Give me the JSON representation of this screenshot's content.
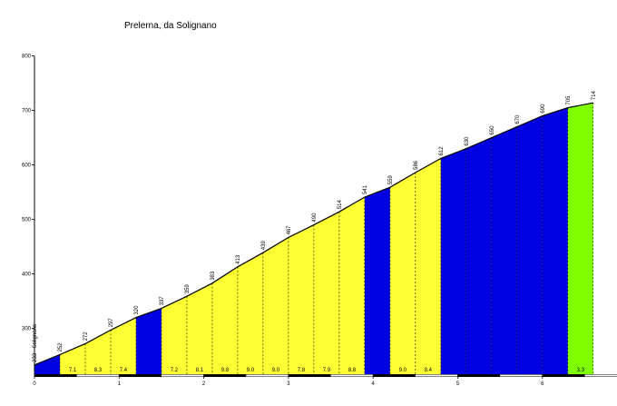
{
  "chart_data": {
    "type": "area",
    "title": "Prelerna, da Solignano",
    "xlabel": "",
    "ylabel": "",
    "xlim": [
      0,
      6.8
    ],
    "ylim": [
      216,
      800
    ],
    "x_ticks": [
      "0",
      "1",
      "2",
      "3",
      "4",
      "5",
      "6"
    ],
    "y_ticks": [
      "300",
      "400",
      "500",
      "600",
      "700",
      "800"
    ],
    "start_label": "233 - Solignano",
    "profile": [
      {
        "km": 0.0,
        "elev": 233
      },
      {
        "km": 0.3,
        "elev": 252
      },
      {
        "km": 0.6,
        "elev": 272
      },
      {
        "km": 0.9,
        "elev": 297
      },
      {
        "km": 1.2,
        "elev": 320
      },
      {
        "km": 1.5,
        "elev": 337
      },
      {
        "km": 1.8,
        "elev": 359
      },
      {
        "km": 2.1,
        "elev": 383
      },
      {
        "km": 2.4,
        "elev": 413
      },
      {
        "km": 2.7,
        "elev": 439
      },
      {
        "km": 3.0,
        "elev": 467
      },
      {
        "km": 3.3,
        "elev": 490
      },
      {
        "km": 3.6,
        "elev": 514
      },
      {
        "km": 3.9,
        "elev": 541
      },
      {
        "km": 4.2,
        "elev": 559
      },
      {
        "km": 4.5,
        "elev": 586
      },
      {
        "km": 4.8,
        "elev": 612
      },
      {
        "km": 5.1,
        "elev": 630
      },
      {
        "km": 5.4,
        "elev": 650
      },
      {
        "km": 5.7,
        "elev": 670
      },
      {
        "km": 6.0,
        "elev": 690
      },
      {
        "km": 6.3,
        "elev": 705
      },
      {
        "km": 6.6,
        "elev": 714
      }
    ],
    "segments": [
      {
        "from": 0.0,
        "to": 0.3,
        "color": "blue",
        "gradient": ""
      },
      {
        "from": 0.3,
        "to": 0.6,
        "color": "yellow",
        "gradient": "7.1"
      },
      {
        "from": 0.6,
        "to": 0.9,
        "color": "yellow",
        "gradient": "8.3"
      },
      {
        "from": 0.9,
        "to": 1.2,
        "color": "yellow",
        "gradient": "7.4"
      },
      {
        "from": 1.2,
        "to": 1.5,
        "color": "blue",
        "gradient": ""
      },
      {
        "from": 1.5,
        "to": 1.8,
        "color": "yellow",
        "gradient": "7.2"
      },
      {
        "from": 1.8,
        "to": 2.1,
        "color": "yellow",
        "gradient": "8.1"
      },
      {
        "from": 2.1,
        "to": 2.4,
        "color": "yellow",
        "gradient": "9.8"
      },
      {
        "from": 2.4,
        "to": 2.7,
        "color": "yellow",
        "gradient": "9.0"
      },
      {
        "from": 2.7,
        "to": 3.0,
        "color": "yellow",
        "gradient": "9.0"
      },
      {
        "from": 3.0,
        "to": 3.3,
        "color": "yellow",
        "gradient": "7.8"
      },
      {
        "from": 3.3,
        "to": 3.6,
        "color": "yellow",
        "gradient": "7.9"
      },
      {
        "from": 3.6,
        "to": 3.9,
        "color": "yellow",
        "gradient": "8.8"
      },
      {
        "from": 3.9,
        "to": 4.2,
        "color": "blue",
        "gradient": ""
      },
      {
        "from": 4.2,
        "to": 4.5,
        "color": "yellow",
        "gradient": "9.0"
      },
      {
        "from": 4.5,
        "to": 4.8,
        "color": "yellow",
        "gradient": "8.4"
      },
      {
        "from": 4.8,
        "to": 5.1,
        "color": "blue",
        "gradient": ""
      },
      {
        "from": 5.1,
        "to": 5.4,
        "color": "blue",
        "gradient": ""
      },
      {
        "from": 5.4,
        "to": 5.7,
        "color": "blue",
        "gradient": ""
      },
      {
        "from": 5.7,
        "to": 6.0,
        "color": "blue",
        "gradient": ""
      },
      {
        "from": 6.0,
        "to": 6.3,
        "color": "blue",
        "gradient": ""
      },
      {
        "from": 6.3,
        "to": 6.6,
        "color": "green",
        "gradient": "3.3"
      }
    ],
    "colors": {
      "blue": "#0000e0",
      "yellow": "#ffff33",
      "green": "#7fff00"
    },
    "grid": false,
    "legend": "none"
  }
}
